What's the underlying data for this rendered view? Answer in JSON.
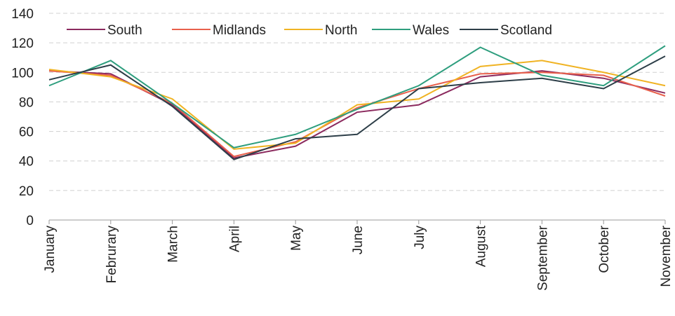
{
  "chart_data": {
    "type": "line",
    "categories": [
      "January",
      "Februrary",
      "March",
      "April",
      "May",
      "June",
      "July",
      "August",
      "September",
      "October",
      "November"
    ],
    "series": [
      {
        "name": "South",
        "color": "#8b2a5e",
        "values": [
          101,
          99,
          78,
          42,
          50,
          73,
          78,
          97,
          101,
          96,
          86
        ]
      },
      {
        "name": "Midlands",
        "color": "#e8604c",
        "values": [
          101,
          98,
          79,
          43,
          53,
          76,
          89,
          99,
          100,
          98,
          84
        ]
      },
      {
        "name": "North",
        "color": "#f0b323",
        "values": [
          102,
          97,
          82,
          48,
          52,
          78,
          82,
          104,
          108,
          100,
          91
        ]
      },
      {
        "name": "Wales",
        "color": "#2e9e7e",
        "values": [
          91,
          108,
          79,
          49,
          58,
          75,
          91,
          117,
          98,
          91,
          118
        ]
      },
      {
        "name": "Scotland",
        "color": "#2d3e48",
        "values": [
          95,
          105,
          77,
          41,
          55,
          58,
          89,
          93,
          96,
          89,
          111
        ]
      }
    ],
    "ylim": [
      0,
      140
    ],
    "yticks": [
      0,
      20,
      40,
      60,
      80,
      100,
      120,
      140
    ],
    "grid": true,
    "legend": "top"
  }
}
